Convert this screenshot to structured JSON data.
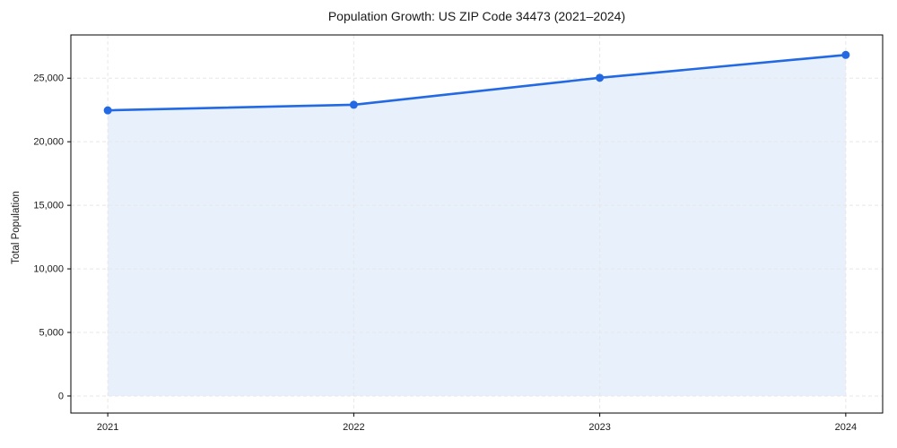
{
  "figure": {
    "background": "#ffffff"
  },
  "chart_data": {
    "type": "line",
    "title": "Population Growth: US ZIP Code 34473 (2021–2024)",
    "xlabel": "",
    "ylabel": "Total Population",
    "categories": [
      2021,
      2022,
      2023,
      2024
    ],
    "x_tick_labels": [
      "2021",
      "2022",
      "2023",
      "2024"
    ],
    "values": [
      22470,
      22910,
      25030,
      26830
    ],
    "series": [
      {
        "name": "Total Population",
        "values": [
          22470,
          22910,
          25030,
          26830
        ]
      }
    ],
    "y_ticks": [
      0,
      5000,
      10000,
      15000,
      20000,
      25000
    ],
    "y_tick_labels": [
      "0",
      "5,000",
      "10,000",
      "15,000",
      "20,000",
      "25,000"
    ],
    "xlim": [
      2020.85,
      2024.15
    ],
    "ylim": [
      -1342,
      28400
    ],
    "legend_position": "none",
    "grid": {
      "visible": true,
      "style": "dashed",
      "color": "#e7e7e7"
    },
    "marker": "circle",
    "area_fill": {
      "visible": true,
      "color": "#2269e3",
      "opacity": 0.1
    },
    "colors": {
      "line": "#2269e3",
      "marker": "#2269e3",
      "axis": "#000000",
      "text": "#191919"
    }
  }
}
